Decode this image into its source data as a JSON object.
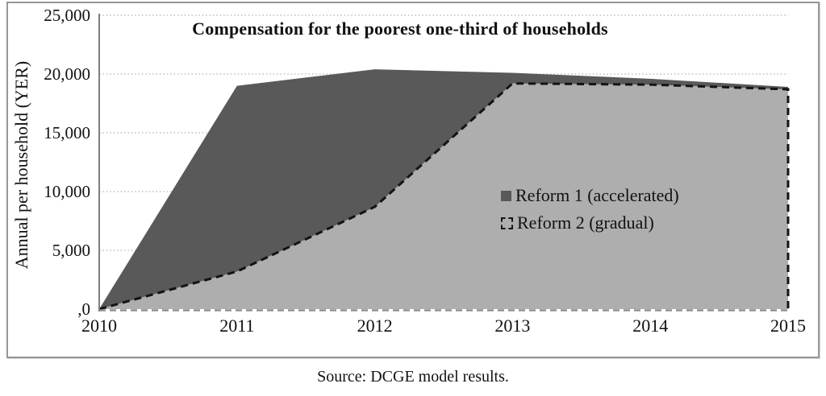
{
  "figure": {
    "source_note": "Source: DCGE model results."
  },
  "chart_data": {
    "type": "area",
    "title": "Compensation for the poorest one-third of households",
    "ylabel": "Annual per household (YER)",
    "xlabel": "",
    "x": [
      "2010",
      "2011",
      "2012",
      "2013",
      "2014",
      "2015"
    ],
    "ylim": [
      0,
      25000
    ],
    "yticks": [
      {
        "value": 25000,
        "label": "25,000"
      },
      {
        "value": 20000,
        "label": "20,000"
      },
      {
        "value": 15000,
        "label": "15,000"
      },
      {
        "value": 10000,
        "label": "10,000"
      },
      {
        "value": 5000,
        "label": "5,000"
      },
      {
        "value": 0,
        "label": ",0"
      }
    ],
    "grid": "horizontal-dotted",
    "legend_position": "inside-right-middle",
    "series": [
      {
        "name": "Reform 1 (accelerated)",
        "values": [
          0,
          19000,
          20400,
          20100,
          19600,
          18900
        ],
        "fill": "#595959",
        "border": "none"
      },
      {
        "name": "Reform 2 (gradual)",
        "values": [
          0,
          3200,
          8700,
          19200,
          19100,
          18700
        ],
        "fill": "#aeaeae",
        "border": "black-dashed"
      }
    ],
    "colors": {
      "gridline": "#b5b5b5",
      "axis_line": "#7f7f7f",
      "frame_border": "#979797",
      "baseline_dash": "#8f8f8f",
      "dashed_border": "#141414",
      "text": "#111111"
    }
  },
  "legend": {
    "items": [
      {
        "label": "Reform 1 (accelerated)",
        "swatch": "filled-square"
      },
      {
        "label": "Reform 2 (gradual)",
        "swatch": "dashed-outline-square"
      }
    ]
  }
}
